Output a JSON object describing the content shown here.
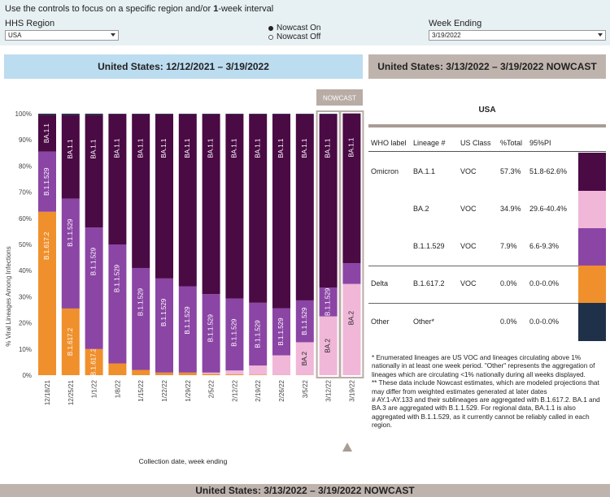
{
  "controls": {
    "intro_prefix": "Use the controls to focus on a specific region and/or ",
    "intro_bold": "1",
    "intro_suffix": "-week interval",
    "region_label": "HHS Region",
    "region_value": "USA",
    "nowcast_on": "Nowcast On",
    "nowcast_off": "Nowcast Off",
    "week_label": "Week Ending",
    "week_value": "3/19/2022"
  },
  "left_banner": "United States: 12/12/2021 – 3/19/2022",
  "right_banner": "United States: 3/13/2022 – 3/19/2022 NOWCAST",
  "bottom_banner": "United States: 3/13/2022 – 3/19/2022 NOWCAST",
  "nowcast_tag": "NOWCAST",
  "chart_data": {
    "type": "bar",
    "stacked": true,
    "ylabel": "% Viral Lineages Among Infections",
    "xlabel": "Collection date, week ending",
    "ylim": [
      0,
      100
    ],
    "yticks": [
      "0%",
      "10%",
      "20%",
      "30%",
      "40%",
      "50%",
      "60%",
      "70%",
      "80%",
      "90%",
      "100%"
    ],
    "categories": [
      "12/18/21",
      "12/25/21",
      "1/1/22",
      "1/8/22",
      "1/15/22",
      "1/22/22",
      "1/29/22",
      "2/5/22",
      "2/12/22",
      "2/19/22",
      "2/26/22",
      "3/5/22",
      "3/12/22",
      "3/19/22"
    ],
    "nowcast_from_index": 12,
    "series": [
      {
        "name": "B.1.617.2",
        "color": "#f0902c",
        "values": [
          62.5,
          25.5,
          10,
          4.5,
          2,
          1,
          1,
          0.5,
          0.3,
          0.2,
          0.1,
          0.1,
          0,
          0
        ]
      },
      {
        "name": "BA.2",
        "color": "#f0b7d8",
        "values": [
          0,
          0,
          0,
          0,
          0,
          0,
          0,
          0.5,
          1.5,
          3.5,
          7.5,
          12.5,
          22.5,
          34.9
        ]
      },
      {
        "name": "B.1.1.529",
        "color": "#8b45a5",
        "values": [
          23,
          42,
          46.5,
          45.5,
          39,
          36,
          33,
          30,
          27.5,
          24,
          18,
          16,
          11,
          7.9
        ]
      },
      {
        "name": "BA.1.1",
        "color": "#4a0a44",
        "values": [
          14,
          32,
          43,
          49.8,
          58.8,
          62.8,
          65.8,
          68.8,
          70.5,
          72.1,
          74.2,
          71.2,
          66.3,
          57.3
        ]
      },
      {
        "name": "Other",
        "color": "#1e3148",
        "values": [
          0.5,
          0.5,
          0.5,
          0.2,
          0.2,
          0.2,
          0.2,
          0.2,
          0.2,
          0.2,
          0.2,
          0.2,
          0.2,
          0
        ]
      }
    ]
  },
  "table": {
    "title": "USA",
    "headers": [
      "WHO label",
      "Lineage #",
      "US Class",
      "%Total",
      "95%PI"
    ],
    "rows": [
      {
        "who": "Omicron",
        "lineage": "BA.1.1",
        "cls": "VOC",
        "total": "57.3%",
        "pi": "51.8-62.6%",
        "color": "#4a0a44"
      },
      {
        "who": "",
        "lineage": "BA.2",
        "cls": "VOC",
        "total": "34.9%",
        "pi": "29.6-40.4%",
        "color": "#f0b7d8"
      },
      {
        "who": "",
        "lineage": "B.1.1.529",
        "cls": "VOC",
        "total": "7.9%",
        "pi": "6.6-9.3%",
        "color": "#8b45a5"
      },
      {
        "who": "Delta",
        "lineage": "B.1.617.2",
        "cls": "VOC",
        "total": "0.0%",
        "pi": "0.0-0.0%",
        "color": "#f0902c"
      },
      {
        "who": "Other",
        "lineage": "Other*",
        "cls": "",
        "total": "0.0%",
        "pi": "0.0-0.0%",
        "color": "#1e3148"
      }
    ]
  },
  "footnotes": [
    "*     Enumerated lineages are US VOC and lineages circulating above 1% nationally in at least one week period. \"Other\" represents the aggregation of lineages which are circulating <1% nationally during all weeks displayed.",
    "**    These data include Nowcast estimates, which are modeled projections that may differ from weighted estimates generated at later dates",
    "#     AY.1-AY.133 and their sublineages are aggregated with B.1.617.2. BA.1 and BA.3 are aggregated with B.1.1.529. For regional data, BA.1.1 is also aggregated with B.1.1.529, as it currently cannot be reliably called in each region."
  ],
  "colors": {
    "controls_bg": "#e7f0f2",
    "left_banner_bg": "#bcdcf0",
    "right_banner_bg": "#bfb4ad",
    "nowcast_tag_bg": "#b8aca5"
  }
}
